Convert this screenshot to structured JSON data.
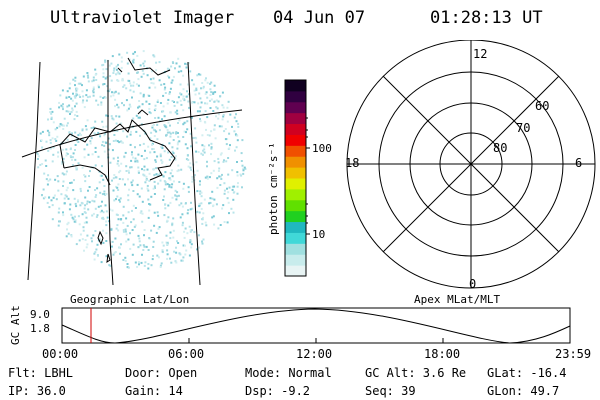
{
  "header": {
    "title": "Ultraviolet Imager",
    "date": "04 Jun 07",
    "time": "01:28:13 UT"
  },
  "colorbar": {
    "label": "photon cm⁻²s⁻¹",
    "ticks": [
      "100",
      "10"
    ],
    "colors": [
      "#e8f4f4",
      "#c8ecec",
      "#a0e0e0",
      "#40d8d8",
      "#20b8c0",
      "#20d020",
      "#60e000",
      "#a0f000",
      "#e0f000",
      "#f0c000",
      "#f09000",
      "#f05000",
      "#f00000",
      "#d00020",
      "#a00040",
      "#600050",
      "#300040",
      "#100020"
    ]
  },
  "polar_plot": {
    "mlt_labels": {
      "top": "12",
      "right": "6",
      "bottom": "0",
      "left": "18"
    },
    "lat_labels": [
      "60",
      "70",
      "80"
    ]
  },
  "orbit_panel": {
    "left_label": "Geographic Lat/Lon",
    "right_label": "Apex MLat/MLT",
    "axis_label": "GC Alt",
    "y_ticks": [
      "9.0",
      "1.8"
    ],
    "x_ticks": [
      "00:00",
      "06:00",
      "12:00",
      "18:00",
      "23:59"
    ]
  },
  "status": {
    "flt": "Flt: LBHL",
    "ip": "IP: 36.0",
    "door": "Door: Open",
    "gain": "Gain: 14",
    "mode": "Mode: Normal",
    "dsp": "Dsp:   -9.2",
    "gcalt": "GC Alt: 3.6 Re",
    "seq": "Seq: 39",
    "glat": "GLat: -16.4",
    "glon": "GLon:  49.7"
  },
  "colors": {
    "marker": "#d00000",
    "foreground": "#000000",
    "speckle": "#9ed8e0"
  }
}
